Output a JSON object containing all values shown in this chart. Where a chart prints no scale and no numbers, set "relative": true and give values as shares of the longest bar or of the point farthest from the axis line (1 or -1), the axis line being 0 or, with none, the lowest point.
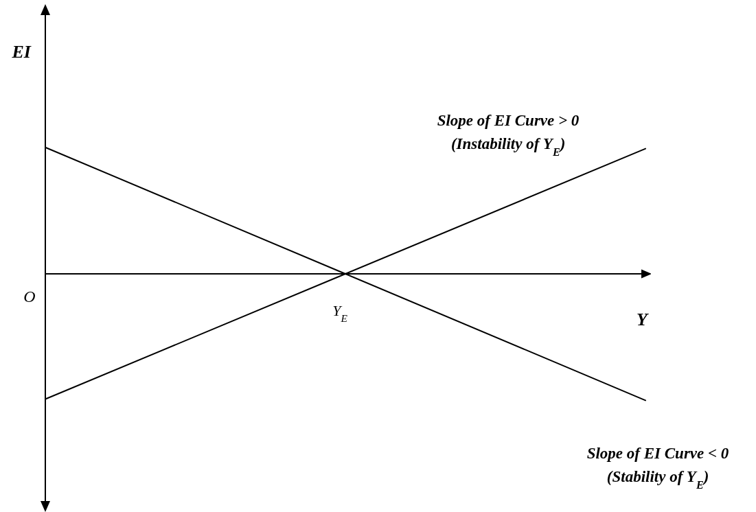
{
  "chart_data": {
    "type": "line",
    "relative": true,
    "xlabel": "Y",
    "ylabel": "EI",
    "categories": [
      null,
      null,
      null
    ],
    "series": [
      {
        "color": "#000000",
        "values": [
          -0.99,
          0,
          0.99
        ]
      },
      {
        "color": "#000000",
        "values": [
          1,
          0,
          -1
        ]
      }
    ],
    "annotations": [
      "O",
      "Slope of EI Curve > 0\n(Instability of Y$_{E}$)",
      "Slope of EI Curve < 0\n(Stability of Y$_{E}$)",
      "Y$_{E}$"
    ],
    "marker": "none",
    "grid": false
  }
}
